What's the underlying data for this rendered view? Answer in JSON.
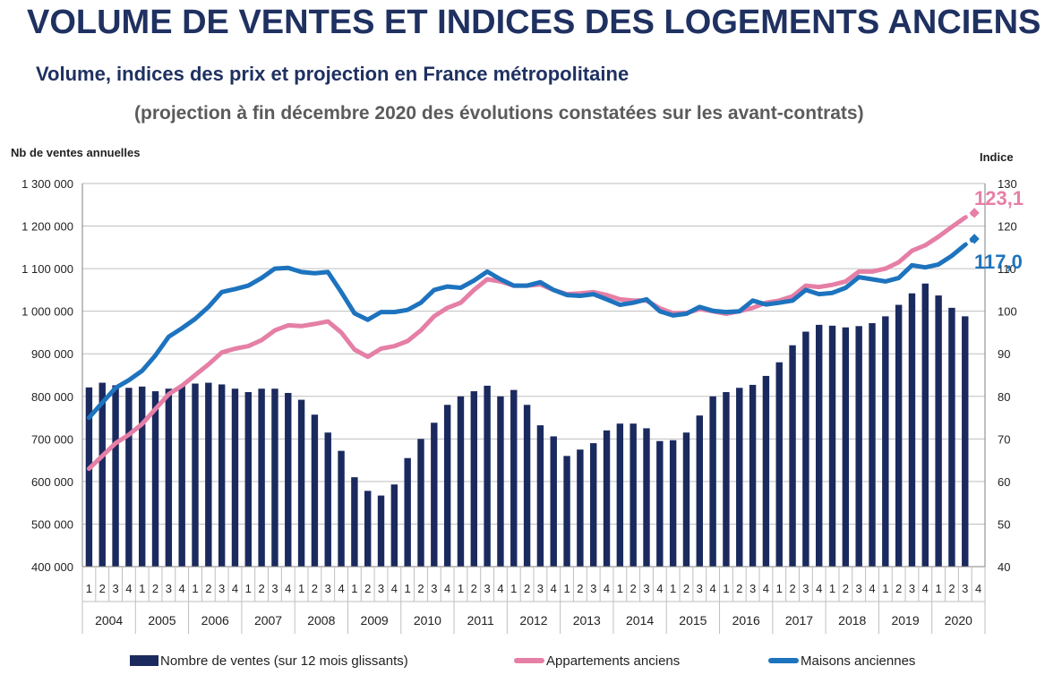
{
  "header": {
    "title": "VOLUME DE VENTES ET INDICES DES LOGEMENTS ANCIENS",
    "subtitle": "Volume, indices des prix et projection en France métropolitaine",
    "subtitle2": "(projection à fin décembre 2020 des évolutions constatées sur les avant-contrats)"
  },
  "chart_data": {
    "type": "bar",
    "left_axis": {
      "label": "Nb de ventes annuelles",
      "range": [
        400000,
        1300000
      ],
      "ticks": [
        "400 000",
        "500 000",
        "600 000",
        "700 000",
        "800 000",
        "900 000",
        "1 000 000",
        "1 100 000",
        "1 200 000",
        "1 300 000"
      ]
    },
    "right_axis": {
      "label": "Indice",
      "range": [
        40,
        130
      ],
      "ticks": [
        "40",
        "50",
        "60",
        "70",
        "80",
        "90",
        "100",
        "110",
        "120",
        "130"
      ]
    },
    "years": [
      "2004",
      "2005",
      "2006",
      "2007",
      "2008",
      "2009",
      "2010",
      "2011",
      "2012",
      "2013",
      "2014",
      "2015",
      "2016",
      "2017",
      "2018",
      "2019",
      "2020"
    ],
    "quarters": [
      "1",
      "2",
      "3",
      "4"
    ],
    "grid": true,
    "legend_position": "bottom",
    "series": [
      {
        "name": "Nombre de ventes (sur 12 mois glissants)",
        "type": "bar",
        "axis": "left",
        "color": "#1b2a5e",
        "values": [
          821000,
          832000,
          826000,
          820000,
          823000,
          812000,
          818000,
          825000,
          830000,
          832000,
          828000,
          818000,
          810000,
          818000,
          818000,
          808000,
          792000,
          757000,
          715000,
          672000,
          610000,
          578000,
          567000,
          593000,
          655000,
          700000,
          738000,
          780000,
          800000,
          812000,
          825000,
          800000,
          815000,
          780000,
          732000,
          706000,
          660000,
          675000,
          690000,
          720000,
          736000,
          736000,
          725000,
          695000,
          697000,
          715000,
          755000,
          800000,
          810000,
          820000,
          827000,
          848000,
          880000,
          920000,
          952000,
          968000,
          966000,
          962000,
          965000,
          972000,
          988000,
          1015000,
          1042000,
          1065000,
          1037000,
          1008000,
          988000,
          null
        ]
      },
      {
        "name": "Appartements anciens",
        "type": "line",
        "axis": "right",
        "color": "#e57fa6",
        "values": [
          63.0,
          66.0,
          69.0,
          71.0,
          73.5,
          77.0,
          80.5,
          82.5,
          85.0,
          87.5,
          90.3,
          91.2,
          91.8,
          93.2,
          95.5,
          96.7,
          96.5,
          97.0,
          97.6,
          95.0,
          91.0,
          89.3,
          91.2,
          91.8,
          93.0,
          95.5,
          98.8,
          100.8,
          102.0,
          105.0,
          107.5,
          107.0,
          106.0,
          106.0,
          106.3,
          105.0,
          104.0,
          104.2,
          104.5,
          103.8,
          102.8,
          102.5,
          102.5,
          100.7,
          99.5,
          99.6,
          100.5,
          100.0,
          99.4,
          100.0,
          100.8,
          102.0,
          102.5,
          103.5,
          106.0,
          105.7,
          106.2,
          107.0,
          109.3,
          109.3,
          110.0,
          111.5,
          114.2,
          115.5,
          117.5,
          119.8,
          122.0
        ],
        "projection": 123.1,
        "end_label": "123,1"
      },
      {
        "name": "Maisons anciennes",
        "type": "line",
        "axis": "right",
        "color": "#1d73be",
        "values": [
          75.0,
          78.5,
          82.0,
          83.8,
          86.0,
          89.6,
          94.0,
          96.0,
          98.2,
          101.0,
          104.5,
          105.2,
          106.0,
          107.8,
          110.0,
          110.2,
          109.2,
          108.9,
          109.2,
          104.5,
          99.5,
          98.0,
          99.8,
          99.8,
          100.3,
          102.0,
          105.0,
          105.8,
          105.5,
          107.2,
          109.3,
          107.5,
          106.0,
          106.0,
          106.8,
          105.0,
          103.8,
          103.6,
          104.0,
          102.8,
          101.5,
          102.0,
          102.8,
          100.0,
          99.0,
          99.4,
          101.0,
          100.1,
          99.8,
          100.0,
          102.5,
          101.6,
          102.0,
          102.5,
          105.0,
          104.0,
          104.3,
          105.5,
          108.0,
          107.5,
          107.0,
          107.8,
          110.8,
          110.3,
          111.0,
          113.0,
          115.6
        ],
        "projection": 117.0,
        "end_label": "117,0"
      }
    ]
  }
}
